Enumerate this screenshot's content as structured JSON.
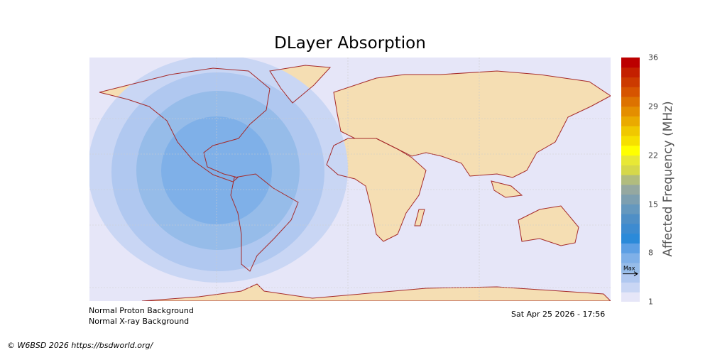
{
  "title": "DLayer Absorption",
  "colorbar": {
    "label": "Affected Frequency (MHz)",
    "ticks": [
      "36",
      "29",
      "22",
      "15",
      "8",
      "1"
    ],
    "range": [
      1,
      36
    ],
    "max_marker_label": "Max",
    "max_marker_value": 5,
    "colors": [
      "#e6e6f8",
      "#c9d6f4",
      "#b0c8f0",
      "#96bce9",
      "#7fb0e8",
      "#5d9fe4",
      "#2b8ad9",
      "#3d8bd0",
      "#4f8fc6",
      "#6598be",
      "#7d9fb0",
      "#95a8a0",
      "#b1bc7e",
      "#d6d84a",
      "#e8e835",
      "#ffff00",
      "#f6e000",
      "#f0c800",
      "#eaaa00",
      "#e48e00",
      "#dd7200",
      "#d65400",
      "#cc3a00",
      "#c42000",
      "#bc0000"
    ]
  },
  "map": {
    "background": "#e6e6f8",
    "land": "#f5deb3",
    "coast": "#a52a2a",
    "absorption_colors": [
      "#c9d6f4",
      "#b0c8f0",
      "#96bce9",
      "#7fb0e8"
    ]
  },
  "notes": {
    "proton": "Normal Proton Background",
    "xray": "Normal X-ray Background",
    "timestamp": "Sat Apr 25 2026 - 17:56"
  },
  "copyright": "© W6BSD 2026 https://bsdworld.org/"
}
